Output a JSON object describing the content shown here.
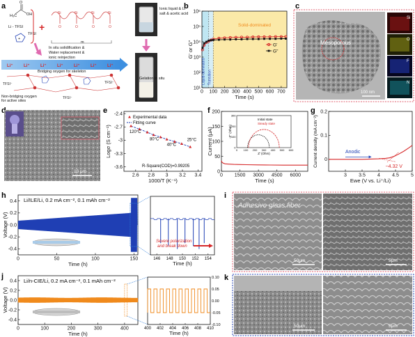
{
  "panels": {
    "a": {
      "label": "a",
      "li_tfsi_label": "Li - TFSI",
      "tfsi_label": "TFSI",
      "m_label": "m",
      "process_text_1": "In situ solidification &",
      "process_text_2": "Water replacement &",
      "process_text_3": "ionic reinjection",
      "bridging_label": "Bridging oxygen for skeleton",
      "nonbridging_label_1": "Non-bridging oxygen",
      "nonbridging_label_2": "for active sites",
      "vial_label_1": "Ionic liquid & Li",
      "vial_label_2": "salt & acetic acid",
      "vial2_label": "Gelation in situ"
    },
    "b": {
      "label": "b",
      "solid_label": "Solid-dominated",
      "liquid_label": "Liquid-dominated",
      "transition_label": "Transition",
      "ylabel": "G' or G''",
      "xlabel": "Time (s)",
      "legend": [
        "G'",
        "G''"
      ]
    },
    "c": {
      "label": "c",
      "annotation": "Mesoporous",
      "scale": "100 nm",
      "elements": [
        "Si",
        "O",
        "F",
        "N"
      ]
    },
    "d": {
      "label": "d",
      "scale": "10 μm"
    },
    "e": {
      "label": "e",
      "legend": [
        "Experimental data",
        "Fitting curve"
      ],
      "ylabel": "Logσ (S cm⁻¹)",
      "xlabel": "1000/T (K⁻¹)",
      "annotations": [
        "120°C",
        "80°C",
        "40°C",
        "25°C"
      ],
      "r_square": "R-Square(COD)=0.99205"
    },
    "f": {
      "label": "f",
      "ylabel": "Current (μA)",
      "xlabel": "Time (s)",
      "inset_legend": [
        "Initial state",
        "Steady state"
      ],
      "inset_xlabel": "Z' (Ohm)",
      "inset_ylabel": "-Z'' (Ohm)"
    },
    "g": {
      "label": "g",
      "ylabel": "Current density (mA cm⁻²)",
      "xlabel": "Ewe (V vs. Li⁺/Li)",
      "annotation_anodic": "Anodic",
      "annotation_voltage": "~4.32 V"
    },
    "h": {
      "label": "h",
      "title": "Li/ILE/Li, 0.2 mA cm⁻², 0.1 mAh cm⁻²",
      "ylabel": "Voltage (V)",
      "xlabel": "Time (h)",
      "zoom_xlabel": "Time (h)",
      "zoom_annotation_1": "Severe polarization",
      "zoom_annotation_2": "and break down"
    },
    "i": {
      "label": "i",
      "overlay": "Adhesive glass fiber",
      "scale_left": "50μm",
      "scale_right": "5μm"
    },
    "j": {
      "label": "j",
      "title": "Li/n-CIE/Li, 0.2 mA cm⁻², 0.1 mAh cm⁻²",
      "ylabel": "Voltage (V)",
      "xlabel": "Time (h)",
      "zoom_xlabel": "Time (h)"
    },
    "k": {
      "label": "k",
      "scale_left": "50μm",
      "scale_right": "5μm"
    }
  },
  "colors": {
    "red": "#d62728",
    "blue": "#1f3fb4",
    "orange": "#f08a1c",
    "cyan_band": "#bfe6f2",
    "yellow_band": "#fbe9a8",
    "sem_gray": "#7a7a7a"
  },
  "chart_data": [
    {
      "id": "b",
      "type": "line",
      "xlabel": "Time (s)",
      "ylabel": "G' or G''",
      "xlim": [
        0,
        750
      ],
      "ylog": true,
      "ylim": [
        10,
        1000000
      ],
      "x_ticks": [
        0,
        100,
        200,
        300,
        400,
        500,
        600,
        700
      ],
      "y_ticks": [
        10,
        100,
        1000,
        10000,
        100000,
        1000000
      ],
      "y_tick_labels": [
        "10¹",
        "10²",
        "10³",
        "10⁴",
        "10⁵",
        "10⁶"
      ],
      "regions": [
        [
          0,
          60
        ],
        [
          60,
          100
        ],
        [
          100,
          750
        ]
      ],
      "series": [
        {
          "name": "G'",
          "x": [
            5,
            20,
            40,
            60,
            80,
            100,
            150,
            200,
            250,
            300,
            350,
            400,
            450,
            500,
            550,
            600,
            650,
            700,
            740
          ],
          "y": [
            3000,
            6000,
            9000,
            11000,
            13000,
            15000,
            17000,
            18000,
            19000,
            19500,
            20000,
            20000,
            20500,
            21000,
            21000,
            21000,
            21500,
            21500,
            21500
          ]
        },
        {
          "name": "G''",
          "x": [
            5,
            20,
            40,
            60,
            80,
            100,
            150,
            200,
            250,
            300,
            350,
            400,
            450,
            500,
            550,
            600,
            650,
            700,
            740
          ],
          "y": [
            4000,
            8000,
            10000,
            12000,
            12500,
            13000,
            13500,
            14000,
            14000,
            14500,
            14500,
            15000,
            15000,
            15000,
            15500,
            15500,
            15500,
            16000,
            16000
          ]
        }
      ]
    },
    {
      "id": "e",
      "type": "scatter",
      "xlabel": "1000/T (K⁻¹)",
      "ylabel": "Logσ (S cm⁻¹)",
      "xlim": [
        2.45,
        3.45
      ],
      "ylim": [
        -3.7,
        -2.35
      ],
      "x_ticks": [
        2.6,
        2.8,
        3.0,
        3.2,
        3.4
      ],
      "y_ticks": [
        -2.4,
        -2.7,
        -3.0,
        -3.3,
        -3.6
      ],
      "series": [
        {
          "name": "Experimental data",
          "x": [
            2.54,
            2.65,
            2.75,
            2.83,
            2.92,
            3.0,
            3.1,
            3.19,
            3.3
          ],
          "y": [
            -2.68,
            -2.75,
            -2.82,
            -2.88,
            -2.93,
            -2.98,
            -3.03,
            -3.08,
            -3.15
          ]
        },
        {
          "name": "Fitting curve",
          "x": [
            2.54,
            2.65,
            2.75,
            2.83,
            2.92,
            3.0,
            3.1,
            3.19,
            3.3
          ],
          "y": [
            -2.68,
            -2.75,
            -2.82,
            -2.88,
            -2.93,
            -2.98,
            -3.03,
            -3.08,
            -3.15
          ]
        }
      ]
    },
    {
      "id": "f",
      "type": "line",
      "xlabel": "Time (s)",
      "ylabel": "Current (μA)",
      "xlim": [
        0,
        7000
      ],
      "ylim": [
        0,
        200
      ],
      "x_ticks": [
        0,
        1500,
        3000,
        4500,
        6000
      ],
      "y_ticks": [
        0,
        50,
        100,
        150,
        200
      ],
      "series": [
        {
          "name": "current",
          "x": [
            0,
            50,
            150,
            300,
            600,
            1000,
            1500,
            2000,
            3000,
            4000,
            5000,
            6000,
            7000
          ],
          "y": [
            35,
            30,
            27,
            25,
            24,
            23,
            22.5,
            22,
            21.5,
            21,
            20.5,
            20.5,
            20.5
          ]
        }
      ],
      "inset": {
        "xlim": [
          0,
          600
        ],
        "ylim": [
          0,
          300
        ],
        "x_ticks": [
          0,
          100,
          200,
          300,
          400,
          500,
          600
        ],
        "y_ticks": [
          0,
          100,
          200,
          300
        ],
        "series": [
          {
            "name": "Initial state",
            "center": 240,
            "radius": 120
          },
          {
            "name": "Steady state",
            "center": 300,
            "radius": 170
          }
        ]
      }
    },
    {
      "id": "g",
      "type": "line",
      "xlabel": "Ewe (V vs. Li⁺/Li)",
      "ylabel": "Current density (mA cm⁻²)",
      "xlim": [
        2.5,
        5.0
      ],
      "ylim": [
        -0.05,
        0.2
      ],
      "x_ticks": [
        3.0,
        3.5,
        4.0,
        4.5,
        5.0
      ],
      "y_ticks": [
        0.0,
        0.1,
        0.2
      ],
      "series": [
        {
          "name": "sweep",
          "x": [
            2.5,
            3.0,
            3.5,
            4.0,
            4.2,
            4.32,
            4.45,
            4.6,
            4.75,
            4.9,
            5.0
          ],
          "y": [
            0.0,
            0.0,
            0.0,
            0.002,
            0.004,
            0.006,
            0.012,
            0.022,
            0.034,
            0.048,
            0.058
          ]
        }
      ]
    },
    {
      "id": "h",
      "type": "line",
      "xlabel": "Time (h)",
      "ylabel": "Voltage (V)",
      "xlim": [
        0,
        155
      ],
      "ylim": [
        -0.5,
        0.5
      ],
      "x_ticks": [
        0,
        50,
        100,
        150
      ],
      "y_ticks": [
        -0.4,
        -0.2,
        0.0,
        0.2,
        0.4
      ],
      "envelope": {
        "amp_start": 0.07,
        "amp_end": 0.2,
        "breakdown_start": 146,
        "breakdown_end": 154
      },
      "zoom": {
        "xlim": [
          145,
          155
        ],
        "x_ticks": [
          146,
          148,
          150,
          152,
          154
        ],
        "spikes_x": [
          146.6,
          147.8,
          149.2,
          150.4,
          151.7,
          152.6,
          153.4
        ]
      }
    },
    {
      "id": "j",
      "type": "line",
      "xlabel": "Time (h)",
      "ylabel": "Voltage (V)",
      "xlim": [
        0,
        450
      ],
      "ylim": [
        -0.5,
        0.5
      ],
      "x_ticks": [
        0,
        100,
        200,
        300,
        400
      ],
      "y_ticks": [
        -0.4,
        -0.2,
        0.0,
        0.2,
        0.4
      ],
      "envelope": {
        "amp": 0.05
      },
      "zoom": {
        "xlim": [
          400,
          410
        ],
        "ylim": [
          -0.1,
          0.1
        ],
        "x_ticks": [
          400,
          402,
          404,
          406,
          408,
          410
        ],
        "y_ticks": [
          -0.1,
          -0.05,
          0.0,
          0.05,
          0.1
        ],
        "amp": 0.05,
        "period": 1
      }
    }
  ]
}
